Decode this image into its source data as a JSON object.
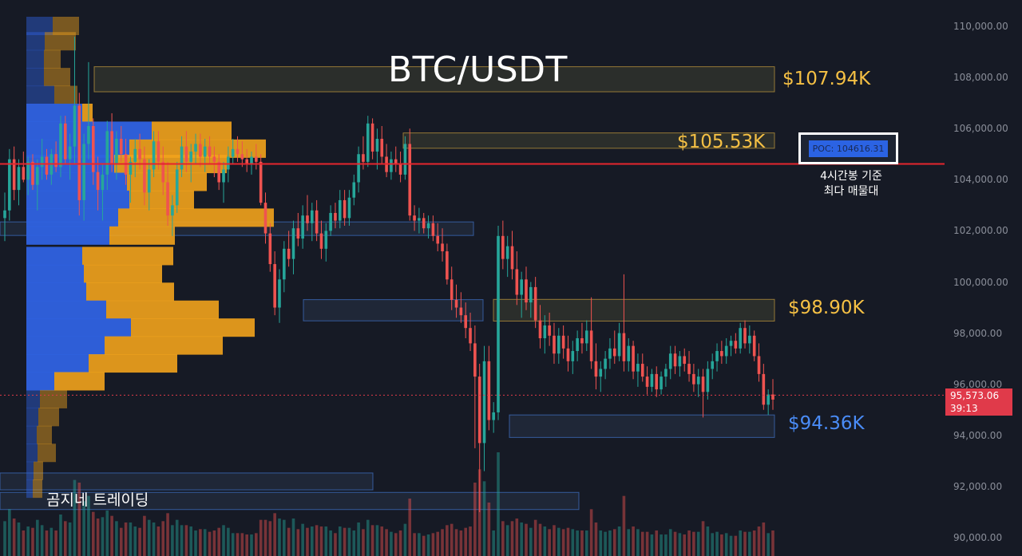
{
  "title": "BTC/USDT",
  "zones": {
    "z1": "$107.94K",
    "z2": "$105.53K",
    "z3": "$98.90K",
    "z4": "$94.36K"
  },
  "poc": {
    "label": "POC: 104616.31",
    "note_line1": "4시간봉 기준",
    "note_line2": "최다 매물대"
  },
  "watermark": "곰지네 트레이딩",
  "last_price": {
    "price": "95,573.06",
    "countdown": "39:13"
  },
  "colors": {
    "up": "#26a69a",
    "down": "#ef5350",
    "poc_line": "#e5252d",
    "zone_yellow": "#f5c044",
    "zone_blue": "#4a8cf7",
    "vp_blue": "#2f62e0",
    "vp_orange": "#f2a31c"
  },
  "chart_data": {
    "type": "candlestick",
    "symbol": "BTC/USDT",
    "y_ticks": [
      "110,000.00",
      "108,000.00",
      "106,000.00",
      "104,000.00",
      "102,000.00",
      "100,000.00",
      "98,000.00",
      "96,000.00",
      "94,000.00",
      "92,000.00",
      "90,000.00"
    ],
    "ylim": [
      89300,
      110800
    ],
    "grid": false,
    "poc_price": 104616.31,
    "last_price": 95573.06,
    "zones": [
      {
        "label": "$107.94K",
        "low": 107440,
        "high": 108420,
        "color": "yellow"
      },
      {
        "label": "$105.53K",
        "low": 105230,
        "high": 105830,
        "color": "yellow"
      },
      {
        "label": "",
        "low": 101820,
        "high": 102350,
        "color": "blue"
      },
      {
        "label": "$98.90K",
        "low": 98470,
        "high": 99320,
        "color": "yellow"
      },
      {
        "label": "",
        "low": 98480,
        "high": 99310,
        "color": "blue"
      },
      {
        "label": "$94.36K",
        "low": 93920,
        "high": 94800,
        "color": "blue"
      },
      {
        "label": "",
        "low": 91870,
        "high": 92530,
        "color": "blue"
      },
      {
        "label": "",
        "low": 91100,
        "high": 91770,
        "color": "blue"
      }
    ],
    "candles_ohlc": [
      [
        102500,
        103500,
        101600,
        102800
      ],
      [
        102800,
        105200,
        102400,
        104800
      ],
      [
        104800,
        105300,
        103200,
        103600
      ],
      [
        103600,
        104800,
        103000,
        104500
      ],
      [
        104500,
        105100,
        103900,
        104000
      ],
      [
        104000,
        104900,
        103400,
        104700
      ],
      [
        104700,
        105000,
        103600,
        103800
      ],
      [
        103800,
        104800,
        102800,
        104500
      ],
      [
        104500,
        105600,
        104000,
        104900
      ],
      [
        104900,
        105200,
        104000,
        104200
      ],
      [
        104200,
        105200,
        103800,
        105000
      ],
      [
        105000,
        105500,
        104300,
        104500
      ],
      [
        104500,
        106500,
        104100,
        106200
      ],
      [
        106200,
        106500,
        104600,
        104800
      ],
      [
        104800,
        105800,
        104000,
        105300
      ],
      [
        105300,
        109600,
        104600,
        106900
      ],
      [
        106900,
        107400,
        102600,
        103200
      ],
      [
        103200,
        105800,
        102400,
        105400
      ],
      [
        105400,
        108600,
        104800,
        106100
      ],
      [
        106100,
        106400,
        103800,
        104300
      ],
      [
        104300,
        104900,
        102800,
        103600
      ],
      [
        103600,
        104600,
        102400,
        104200
      ],
      [
        104200,
        106300,
        103600,
        105900
      ],
      [
        105900,
        106600,
        104300,
        104600
      ],
      [
        104600,
        105900,
        104000,
        105600
      ],
      [
        105600,
        106100,
        104700,
        105000
      ],
      [
        105000,
        105600,
        103800,
        104200
      ],
      [
        104200,
        104900,
        103100,
        104700
      ],
      [
        104700,
        105600,
        104100,
        105200
      ],
      [
        105200,
        105800,
        104400,
        104800
      ],
      [
        104800,
        105300,
        103000,
        103500
      ],
      [
        103500,
        104800,
        102800,
        104400
      ],
      [
        104400,
        105900,
        104100,
        105500
      ],
      [
        105500,
        105900,
        104400,
        104700
      ],
      [
        104700,
        105300,
        103400,
        103900
      ],
      [
        103900,
        104700,
        102200,
        102600
      ],
      [
        102600,
        103400,
        101800,
        103000
      ],
      [
        103000,
        104700,
        102700,
        104400
      ],
      [
        104400,
        105700,
        104100,
        105300
      ],
      [
        105300,
        105900,
        104300,
        104700
      ],
      [
        104700,
        105400,
        103900,
        105100
      ],
      [
        105100,
        105800,
        104600,
        105400
      ],
      [
        105400,
        105800,
        104500,
        104900
      ],
      [
        104900,
        105600,
        104300,
        105300
      ],
      [
        105300,
        105700,
        104600,
        104900
      ],
      [
        104900,
        105300,
        104100,
        104700
      ],
      [
        104700,
        105000,
        103600,
        103900
      ],
      [
        103900,
        104700,
        103100,
        104400
      ],
      [
        104400,
        105300,
        103900,
        104900
      ],
      [
        104900,
        105600,
        104600,
        105200
      ],
      [
        105200,
        105700,
        104700,
        105000
      ],
      [
        105000,
        105500,
        104500,
        104800
      ],
      [
        104800,
        105200,
        104300,
        104600
      ],
      [
        104600,
        105100,
        104200,
        104900
      ],
      [
        104900,
        105400,
        104400,
        104700
      ],
      [
        104700,
        105000,
        103000,
        103100
      ],
      [
        103100,
        103500,
        101500,
        101900
      ],
      [
        101900,
        102300,
        100400,
        100700
      ],
      [
        100700,
        101200,
        98700,
        99000
      ],
      [
        99000,
        100500,
        98400,
        100100
      ],
      [
        100100,
        101600,
        99600,
        101300
      ],
      [
        101300,
        102000,
        100600,
        100900
      ],
      [
        100900,
        102400,
        100300,
        102100
      ],
      [
        102100,
        102700,
        101400,
        101700
      ],
      [
        101700,
        103000,
        101300,
        102600
      ],
      [
        102600,
        103400,
        102000,
        102300
      ],
      [
        102300,
        103100,
        101600,
        102800
      ],
      [
        102800,
        103200,
        101600,
        101900
      ],
      [
        101900,
        102400,
        100900,
        101300
      ],
      [
        101300,
        102300,
        100800,
        102000
      ],
      [
        102000,
        103000,
        101800,
        102700
      ],
      [
        102700,
        103100,
        102100,
        102400
      ],
      [
        102400,
        103600,
        102100,
        103200
      ],
      [
        103200,
        103600,
        102200,
        102500
      ],
      [
        102500,
        103600,
        102200,
        103300
      ],
      [
        103300,
        104200,
        103000,
        103900
      ],
      [
        103900,
        105300,
        103500,
        105000
      ],
      [
        105000,
        105700,
        104400,
        104700
      ],
      [
        104700,
        106500,
        104500,
        106200
      ],
      [
        106200,
        106400,
        104800,
        105100
      ],
      [
        105100,
        106000,
        104400,
        105600
      ],
      [
        105600,
        106100,
        104600,
        104900
      ],
      [
        104900,
        105400,
        104100,
        104300
      ],
      [
        104300,
        105100,
        104000,
        104800
      ],
      [
        104800,
        105300,
        104300,
        104600
      ],
      [
        104600,
        105100,
        103900,
        104200
      ],
      [
        104200,
        105700,
        104000,
        105400
      ],
      [
        105400,
        106000,
        102400,
        102600
      ],
      [
        102600,
        103000,
        102000,
        102400
      ],
      [
        102400,
        102900,
        101900,
        102500
      ],
      [
        102500,
        102700,
        101900,
        102100
      ],
      [
        102100,
        102600,
        101700,
        102300
      ],
      [
        102300,
        102600,
        101600,
        101800
      ],
      [
        101800,
        102300,
        101200,
        101500
      ],
      [
        101500,
        102100,
        100800,
        101200
      ],
      [
        101200,
        101500,
        99900,
        100100
      ],
      [
        100100,
        100600,
        98900,
        99300
      ],
      [
        99300,
        99900,
        98600,
        99000
      ],
      [
        99000,
        99600,
        98400,
        98700
      ],
      [
        98700,
        99200,
        97800,
        98200
      ],
      [
        98200,
        98800,
        97300,
        97600
      ],
      [
        97600,
        98300,
        93500,
        96300
      ],
      [
        96300,
        96800,
        91000,
        93700
      ],
      [
        93700,
        97500,
        92600,
        96900
      ],
      [
        96900,
        97500,
        94200,
        94600
      ],
      [
        94600,
        95300,
        94100,
        94900
      ],
      [
        94900,
        102200,
        94600,
        101800
      ],
      [
        101800,
        102400,
        100500,
        100900
      ],
      [
        100900,
        101800,
        100200,
        101400
      ],
      [
        101400,
        102000,
        100100,
        100500
      ],
      [
        100500,
        101200,
        99100,
        99500
      ],
      [
        99500,
        100400,
        98600,
        100100
      ],
      [
        100100,
        100600,
        98900,
        99200
      ],
      [
        99200,
        100000,
        98600,
        99800
      ],
      [
        99800,
        100200,
        98200,
        98500
      ],
      [
        98500,
        99100,
        97400,
        97800
      ],
      [
        97800,
        98700,
        97200,
        98300
      ],
      [
        98300,
        98800,
        97500,
        97900
      ],
      [
        97900,
        98400,
        96800,
        97200
      ],
      [
        97200,
        98200,
        96800,
        97900
      ],
      [
        97900,
        98300,
        97000,
        97400
      ],
      [
        97400,
        97900,
        96500,
        96900
      ],
      [
        96900,
        97700,
        96400,
        97300
      ],
      [
        97300,
        98100,
        96900,
        97800
      ],
      [
        97800,
        98400,
        97200,
        97600
      ],
      [
        97600,
        98500,
        97300,
        98100
      ],
      [
        98100,
        99400,
        96600,
        96900
      ],
      [
        96900,
        97600,
        95800,
        96300
      ],
      [
        96300,
        96900,
        95700,
        96600
      ],
      [
        96600,
        97300,
        96200,
        97000
      ],
      [
        97000,
        97800,
        96600,
        97400
      ],
      [
        97400,
        98100,
        96800,
        97100
      ],
      [
        97100,
        98400,
        96900,
        98000
      ],
      [
        98000,
        100300,
        96500,
        96900
      ],
      [
        96900,
        97800,
        96500,
        97500
      ],
      [
        97500,
        97700,
        96200,
        96500
      ],
      [
        96500,
        97200,
        95900,
        96800
      ],
      [
        96800,
        97200,
        96100,
        96300
      ],
      [
        96300,
        96700,
        95600,
        95900
      ],
      [
        95900,
        96600,
        95700,
        96400
      ],
      [
        96400,
        96700,
        95500,
        95800
      ],
      [
        95800,
        96500,
        95600,
        96300
      ],
      [
        96300,
        96800,
        95900,
        96600
      ],
      [
        96600,
        97500,
        96200,
        97200
      ],
      [
        97200,
        97500,
        96400,
        96700
      ],
      [
        96700,
        97300,
        96300,
        97100
      ],
      [
        97100,
        97400,
        96500,
        96800
      ],
      [
        96800,
        97300,
        96100,
        96400
      ],
      [
        96400,
        96800,
        95700,
        96000
      ],
      [
        96000,
        96600,
        95500,
        96300
      ],
      [
        96300,
        96600,
        94700,
        95700
      ],
      [
        95700,
        96900,
        95400,
        96600
      ],
      [
        96600,
        97200,
        96200,
        96900
      ],
      [
        96900,
        97600,
        96500,
        97300
      ],
      [
        97300,
        97700,
        96800,
        97100
      ],
      [
        97100,
        97800,
        96800,
        97500
      ],
      [
        97500,
        97900,
        97100,
        97700
      ],
      [
        97700,
        98000,
        97200,
        97400
      ],
      [
        97400,
        98400,
        97200,
        98200
      ],
      [
        98200,
        98500,
        97400,
        97600
      ],
      [
        97600,
        98300,
        97200,
        97900
      ],
      [
        97900,
        98100,
        96900,
        97100
      ],
      [
        97100,
        97600,
        96100,
        96400
      ],
      [
        96400,
        96800,
        95000,
        95200
      ],
      [
        95200,
        95800,
        94800,
        95600
      ],
      [
        95600,
        96200,
        95000,
        95400
      ]
    ],
    "volume_profile": [
      {
        "price": 110000,
        "up": 0.033,
        "down": 0.033
      },
      {
        "price": 109400,
        "up": 0.023,
        "down": 0.039
      },
      {
        "price": 108700,
        "up": 0.022,
        "down": 0.021
      },
      {
        "price": 108000,
        "up": 0.022,
        "down": 0.033
      },
      {
        "price": 107300,
        "up": 0.035,
        "down": 0.029
      },
      {
        "price": 106600,
        "up": 0.07,
        "down": 0.013
      },
      {
        "price": 105900,
        "up": 0.157,
        "down": 0.1
      },
      {
        "price": 105200,
        "up": 0.129,
        "down": 0.171
      },
      {
        "price": 104600,
        "up": 0.11,
        "down": 0.141
      },
      {
        "price": 103900,
        "up": 0.126,
        "down": 0.1
      },
      {
        "price": 103200,
        "up": 0.129,
        "down": 0.081
      },
      {
        "price": 102500,
        "up": 0.115,
        "down": 0.195
      },
      {
        "price": 101800,
        "up": 0.104,
        "down": 0.082
      },
      {
        "price": 101000,
        "up": 0.07,
        "down": 0.114
      },
      {
        "price": 100300,
        "up": 0.072,
        "down": 0.098
      },
      {
        "price": 99600,
        "up": 0.075,
        "down": 0.11
      },
      {
        "price": 98900,
        "up": 0.1,
        "down": 0.141
      },
      {
        "price": 98200,
        "up": 0.131,
        "down": 0.155
      },
      {
        "price": 97500,
        "up": 0.098,
        "down": 0.148
      },
      {
        "price": 96800,
        "up": 0.078,
        "down": 0.111
      },
      {
        "price": 96100,
        "up": 0.035,
        "down": 0.063
      },
      {
        "price": 95400,
        "up": 0.017,
        "down": 0.034
      },
      {
        "price": 94700,
        "up": 0.015,
        "down": 0.026
      },
      {
        "price": 94000,
        "up": 0.013,
        "down": 0.019
      },
      {
        "price": 93300,
        "up": 0.014,
        "down": 0.023
      },
      {
        "price": 92600,
        "up": 0.009,
        "down": 0.012
      },
      {
        "price": 91900,
        "up": 0.008,
        "down": 0.012
      }
    ]
  }
}
